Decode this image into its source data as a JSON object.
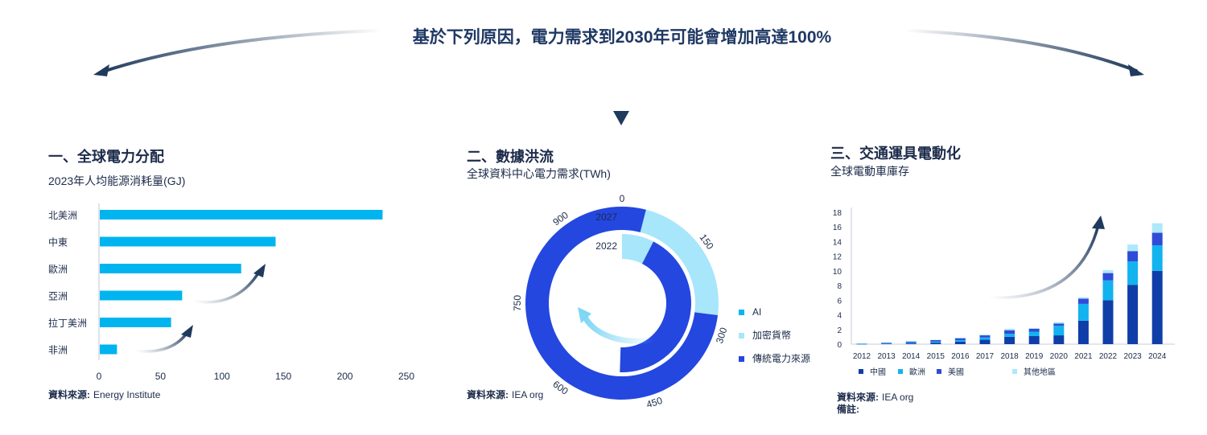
{
  "header": {
    "title": "基於下列原因，電力需求到2030年可能會增加高達100%"
  },
  "panels": [
    {
      "heading": "一、全球電力分配",
      "subtitle": "2023年人均能源消耗量(GJ)",
      "source_label": "資料來源:",
      "source_value": "Energy Institute"
    },
    {
      "heading": "二、數據洪流",
      "subtitle": "全球資料中心電力需求(TWh)",
      "source_label": "資料來源:",
      "source_value": "IEA org",
      "ring_labels": {
        "inner": "2022",
        "outer": "2027"
      }
    },
    {
      "heading": "三、交通運具電動化",
      "subtitle": "全球電動車庫存",
      "source_label": "資料來源:",
      "source_value": "IEA org",
      "note_label": "備註:"
    }
  ],
  "colors": {
    "title": "#1f3864",
    "text": "#1c2b4a",
    "bar": "#00b4f0",
    "ai": "#0bb5f0",
    "crypto": "#7fd6f5",
    "traditional": "#2447e0",
    "ring_light": "#a7e6fb",
    "china": "#0f3ea8",
    "europe": "#12b3ee",
    "usa": "#2f4bd8",
    "other": "#aee8fb",
    "arrow": "#1f3a5c"
  },
  "chart_data": [
    {
      "type": "bar",
      "orientation": "horizontal",
      "categories": [
        "北美洲",
        "中東",
        "歐洲",
        "亞洲",
        "拉丁美洲",
        "非洲"
      ],
      "values": [
        230,
        143,
        115,
        67,
        58,
        14
      ],
      "xlim": [
        0,
        250
      ],
      "xticks": [
        0,
        50,
        100,
        150,
        200,
        250
      ],
      "grid": false
    },
    {
      "type": "radial_bar",
      "axis_ticks": [
        0,
        150,
        300,
        450,
        600,
        750,
        900
      ],
      "axis_max": 1000,
      "legend": [
        "AI",
        "加密貨幣",
        "傳統電力來源"
      ],
      "legend_position": "right",
      "series": [
        {
          "ring": "2022",
          "segments": [
            {
              "name": "AI",
              "value": 0
            },
            {
              "name": "加密貨幣",
              "value": 75
            },
            {
              "name": "傳統電力來源",
              "value": 430
            }
          ]
        },
        {
          "ring": "2027",
          "segments": [
            {
              "name": "AI",
              "value": 0
            },
            {
              "name": "加密貨幣",
              "value": 270
            },
            {
              "name": "傳統電力來源",
              "value": 770
            }
          ]
        }
      ]
    },
    {
      "type": "stacked_bar",
      "categories": [
        "2012",
        "2013",
        "2014",
        "2015",
        "2016",
        "2017",
        "2018",
        "2019",
        "2020",
        "2021",
        "2022",
        "2023",
        "2024"
      ],
      "ylim": [
        0,
        18
      ],
      "yticks": [
        0,
        2,
        4,
        6,
        8,
        10,
        12,
        14,
        16,
        18
      ],
      "grid": false,
      "legend_position": "bottom",
      "series": [
        {
          "name": "中國",
          "values": [
            0.02,
            0.05,
            0.1,
            0.2,
            0.35,
            0.6,
            1.0,
            1.1,
            1.2,
            3.2,
            6.0,
            8.1,
            10.0
          ]
        },
        {
          "name": "歐洲",
          "values": [
            0.02,
            0.05,
            0.1,
            0.15,
            0.2,
            0.3,
            0.4,
            0.6,
            1.3,
            2.3,
            2.7,
            3.2,
            3.5
          ]
        },
        {
          "name": "美國",
          "values": [
            0.05,
            0.1,
            0.15,
            0.2,
            0.25,
            0.3,
            0.5,
            0.4,
            0.3,
            0.7,
            1.0,
            1.4,
            1.7
          ]
        },
        {
          "name": "其他地區",
          "values": [
            0.02,
            0.03,
            0.05,
            0.05,
            0.1,
            0.1,
            0.2,
            0.1,
            0.2,
            0.2,
            0.4,
            0.9,
            1.3
          ]
        }
      ]
    }
  ]
}
